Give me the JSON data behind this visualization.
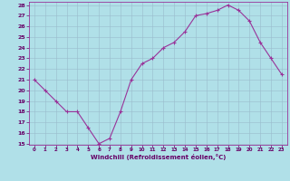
{
  "x": [
    0,
    1,
    2,
    3,
    4,
    5,
    6,
    7,
    8,
    9,
    10,
    11,
    12,
    13,
    14,
    15,
    16,
    17,
    18,
    19,
    20,
    21,
    22,
    23
  ],
  "y": [
    21,
    20,
    19,
    18,
    18,
    16.5,
    15,
    15.5,
    18,
    21,
    22.5,
    23,
    24,
    24.5,
    25.5,
    27,
    27.2,
    27.5,
    28,
    27.5,
    26.5,
    24.5,
    23,
    21.5
  ],
  "line_color": "#993399",
  "marker_color": "#993399",
  "bg_color": "#b0e0e8",
  "grid_color": "#99bbcc",
  "xlabel": "Windchill (Refroidissement éolien,°C)",
  "ylim": [
    15,
    28
  ],
  "xlim": [
    -0.5,
    23.5
  ],
  "yticks": [
    15,
    16,
    17,
    18,
    19,
    20,
    21,
    22,
    23,
    24,
    25,
    26,
    27,
    28
  ],
  "xticks": [
    0,
    1,
    2,
    3,
    4,
    5,
    6,
    7,
    8,
    9,
    10,
    11,
    12,
    13,
    14,
    15,
    16,
    17,
    18,
    19,
    20,
    21,
    22,
    23
  ]
}
